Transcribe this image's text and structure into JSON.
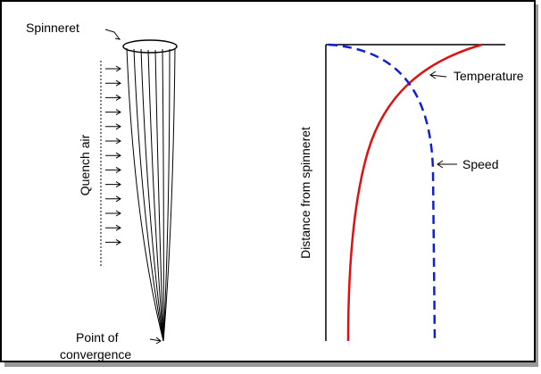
{
  "labels": {
    "spinneret": "Spinneret",
    "quench_air": "Quench air",
    "point_of_convergence": [
      "Point of",
      "convergence"
    ],
    "distance_axis": "Distance from spinneret",
    "temperature": "Temperature",
    "speed": "Speed"
  }
}
